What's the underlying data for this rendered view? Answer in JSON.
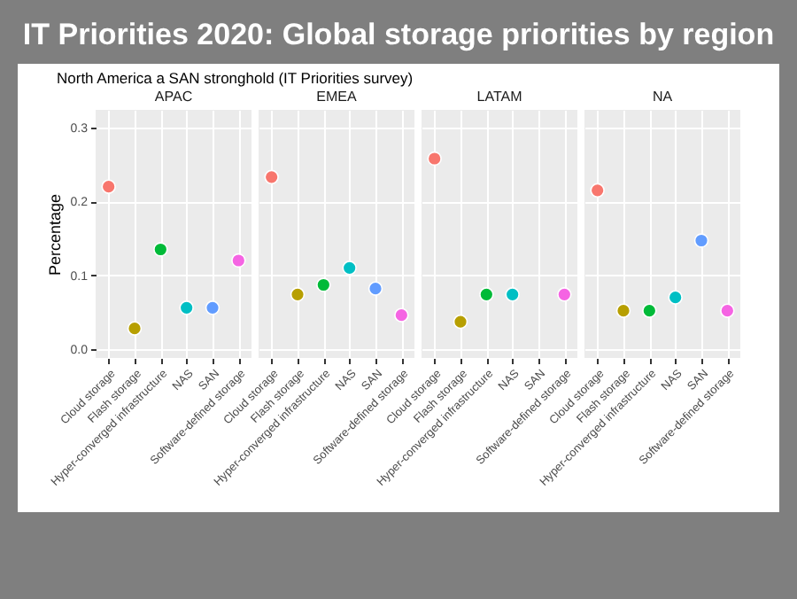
{
  "chart_data": [
    {
      "type": "scatter",
      "title": "APAC",
      "annotations": [
        "IT Priorities 2020: Global storage priorities by region",
        "North America a SAN stronghold (IT Priorities survey)"
      ],
      "ylabel": "Percentage",
      "categories": [
        "Cloud storage",
        "Flash storage",
        "Hyper-converged infrastructure",
        "NAS",
        "SAN",
        "Software-defined storage"
      ],
      "values": [
        0.22,
        0.028,
        0.135,
        0.056,
        0.056,
        0.12
      ],
      "colors": [
        "#f8766d",
        "#b79f00",
        "#00ba38",
        "#00bfc4",
        "#619cff",
        "#f564e3"
      ],
      "ylim": [
        -0.012,
        0.324
      ],
      "yticks": [
        {
          "value": 0,
          "label": "0.0"
        },
        0.1,
        0.2,
        0.3
      ],
      "grid": true,
      "marker": "circle"
    },
    {
      "type": "scatter",
      "title": "EMEA",
      "categories": [
        "Cloud storage",
        "Flash storage",
        "Hyper-converged infrastructure",
        "NAS",
        "SAN",
        "Software-defined storage"
      ],
      "values": [
        0.233,
        0.074,
        0.087,
        0.11,
        0.082,
        0.046
      ],
      "colors": [
        "#f8766d",
        "#b79f00",
        "#00ba38",
        "#00bfc4",
        "#619cff",
        "#f564e3"
      ],
      "ylim": [
        -0.012,
        0.324
      ],
      "yticks": [
        0,
        0.1,
        0.2,
        0.3
      ],
      "grid": true,
      "marker": "circle",
      "tick_labels": "x"
    },
    {
      "type": "scatter",
      "title": "LATAM",
      "categories": [
        "Cloud storage",
        "Flash storage",
        "Hyper-converged infrastructure",
        "NAS",
        "SAN",
        "Software-defined storage"
      ],
      "values": [
        0.258,
        0.037,
        0.074,
        0.074,
        null,
        0.074
      ],
      "colors": [
        "#f8766d",
        "#b79f00",
        "#00ba38",
        "#00bfc4",
        "#619cff",
        "#f564e3"
      ],
      "ylim": [
        -0.012,
        0.324
      ],
      "yticks": [
        0,
        0.1,
        0.2,
        0.3
      ],
      "grid": true,
      "marker": "circle",
      "tick_labels": "x"
    },
    {
      "type": "scatter",
      "title": "NA",
      "categories": [
        "Cloud storage",
        "Flash storage",
        "Hyper-converged infrastructure",
        "NAS",
        "SAN",
        "Software-defined storage"
      ],
      "values": [
        0.215,
        0.052,
        0.052,
        0.07,
        0.147,
        0.052
      ],
      "colors": [
        "#f8766d",
        "#b79f00",
        "#00ba38",
        "#00bfc4",
        "#619cff",
        "#f564e3"
      ],
      "ylim": [
        -0.012,
        0.324
      ],
      "yticks": [
        0,
        0.1,
        0.2,
        0.3
      ],
      "grid": true,
      "marker": "circle",
      "tick_labels": "x"
    }
  ]
}
